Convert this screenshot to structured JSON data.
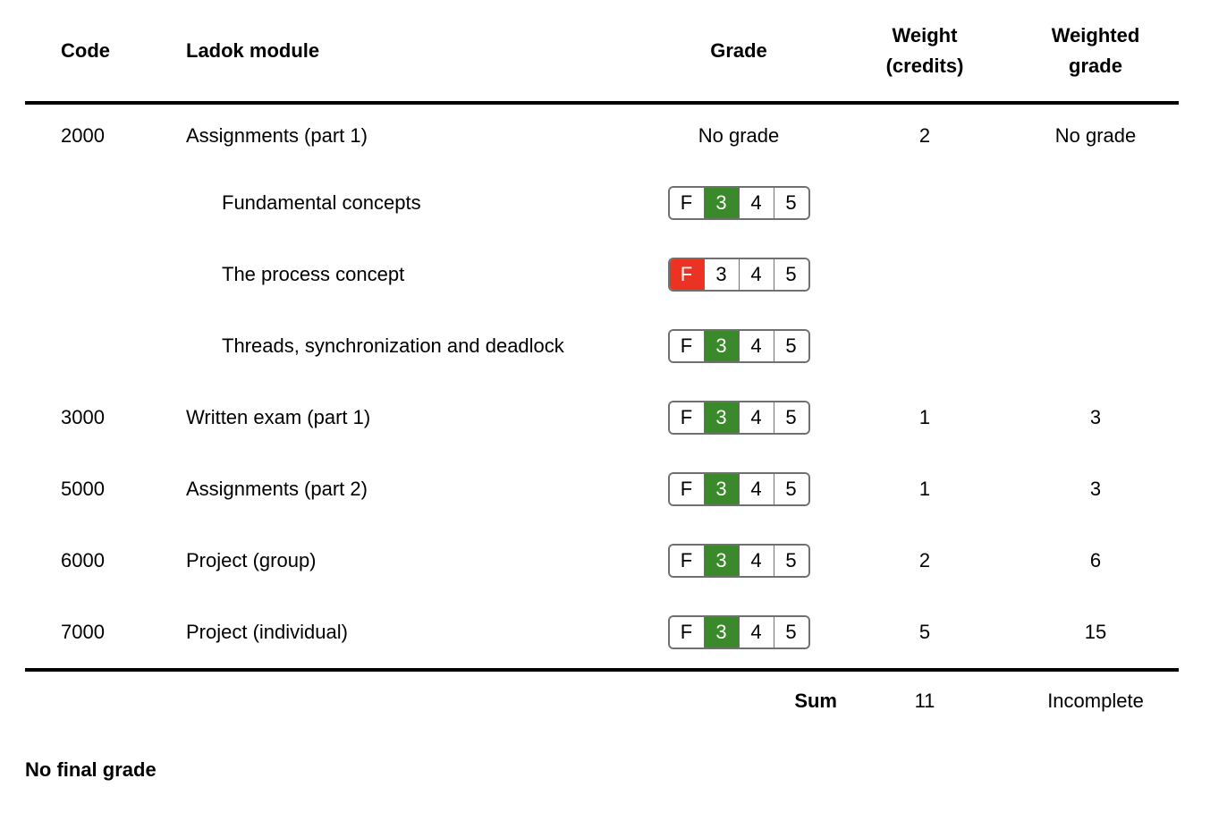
{
  "headers": {
    "code": "Code",
    "module": "Ladok module",
    "grade": "Grade",
    "weight_line1": "Weight",
    "weight_line2": "(credits)",
    "weighted_line1": "Weighted",
    "weighted_line2": "grade"
  },
  "grade_options": [
    "F",
    "3",
    "4",
    "5"
  ],
  "colors": {
    "pass_selected": "#3a8a2c",
    "fail_selected": "#ea3323",
    "picker_border": "#707070"
  },
  "rows": [
    {
      "code": "2000",
      "module": "Assignments (part 1)",
      "grade_text": "No grade",
      "weight": "2",
      "weighted": "No grade",
      "sub_items": [
        {
          "name": "Fundamental concepts",
          "selected": "3"
        },
        {
          "name": "The process concept",
          "selected": "F"
        },
        {
          "name": "Threads, synchronization and deadlock",
          "selected": "3"
        }
      ]
    },
    {
      "code": "3000",
      "module": "Written exam (part 1)",
      "selected": "3",
      "weight": "1",
      "weighted": "3"
    },
    {
      "code": "5000",
      "module": "Assignments (part 2)",
      "selected": "3",
      "weight": "1",
      "weighted": "3"
    },
    {
      "code": "6000",
      "module": "Project (group)",
      "selected": "3",
      "weight": "2",
      "weighted": "6"
    },
    {
      "code": "7000",
      "module": "Project (individual)",
      "selected": "3",
      "weight": "5",
      "weighted": "15"
    }
  ],
  "footer": {
    "sum_label": "Sum",
    "total_weight": "11",
    "total_weighted": "Incomplete"
  },
  "final_grade": "No final grade"
}
